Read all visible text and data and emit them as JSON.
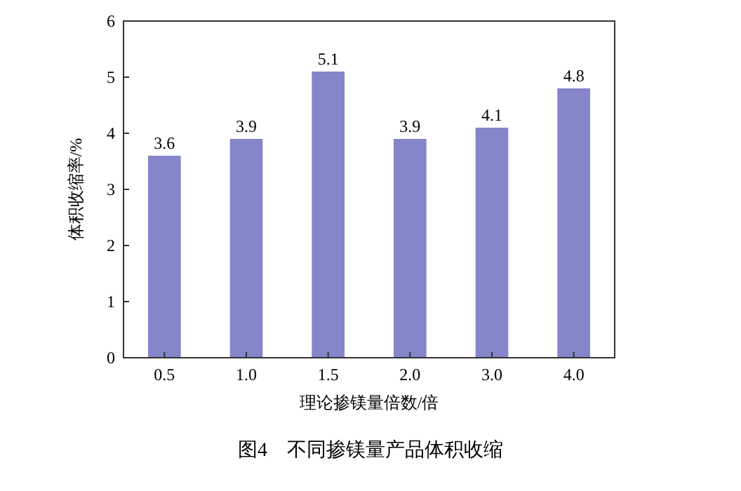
{
  "chart_data": {
    "type": "bar",
    "categories": [
      "0.5",
      "1.0",
      "1.5",
      "2.0",
      "3.0",
      "4.0"
    ],
    "values": [
      3.6,
      3.9,
      5.1,
      3.9,
      4.1,
      4.8
    ],
    "color": "#8585c9",
    "xlabel": "理论掺镁量倍数/倍",
    "ylabel": "体积收缩率/%",
    "ylim": [
      0,
      6
    ],
    "yticks": [
      0,
      1,
      2,
      3,
      4,
      5,
      6
    ],
    "grid": false,
    "data_labels": true,
    "annotations": [
      "图4　不同掺镁量产品体积收缩"
    ]
  }
}
